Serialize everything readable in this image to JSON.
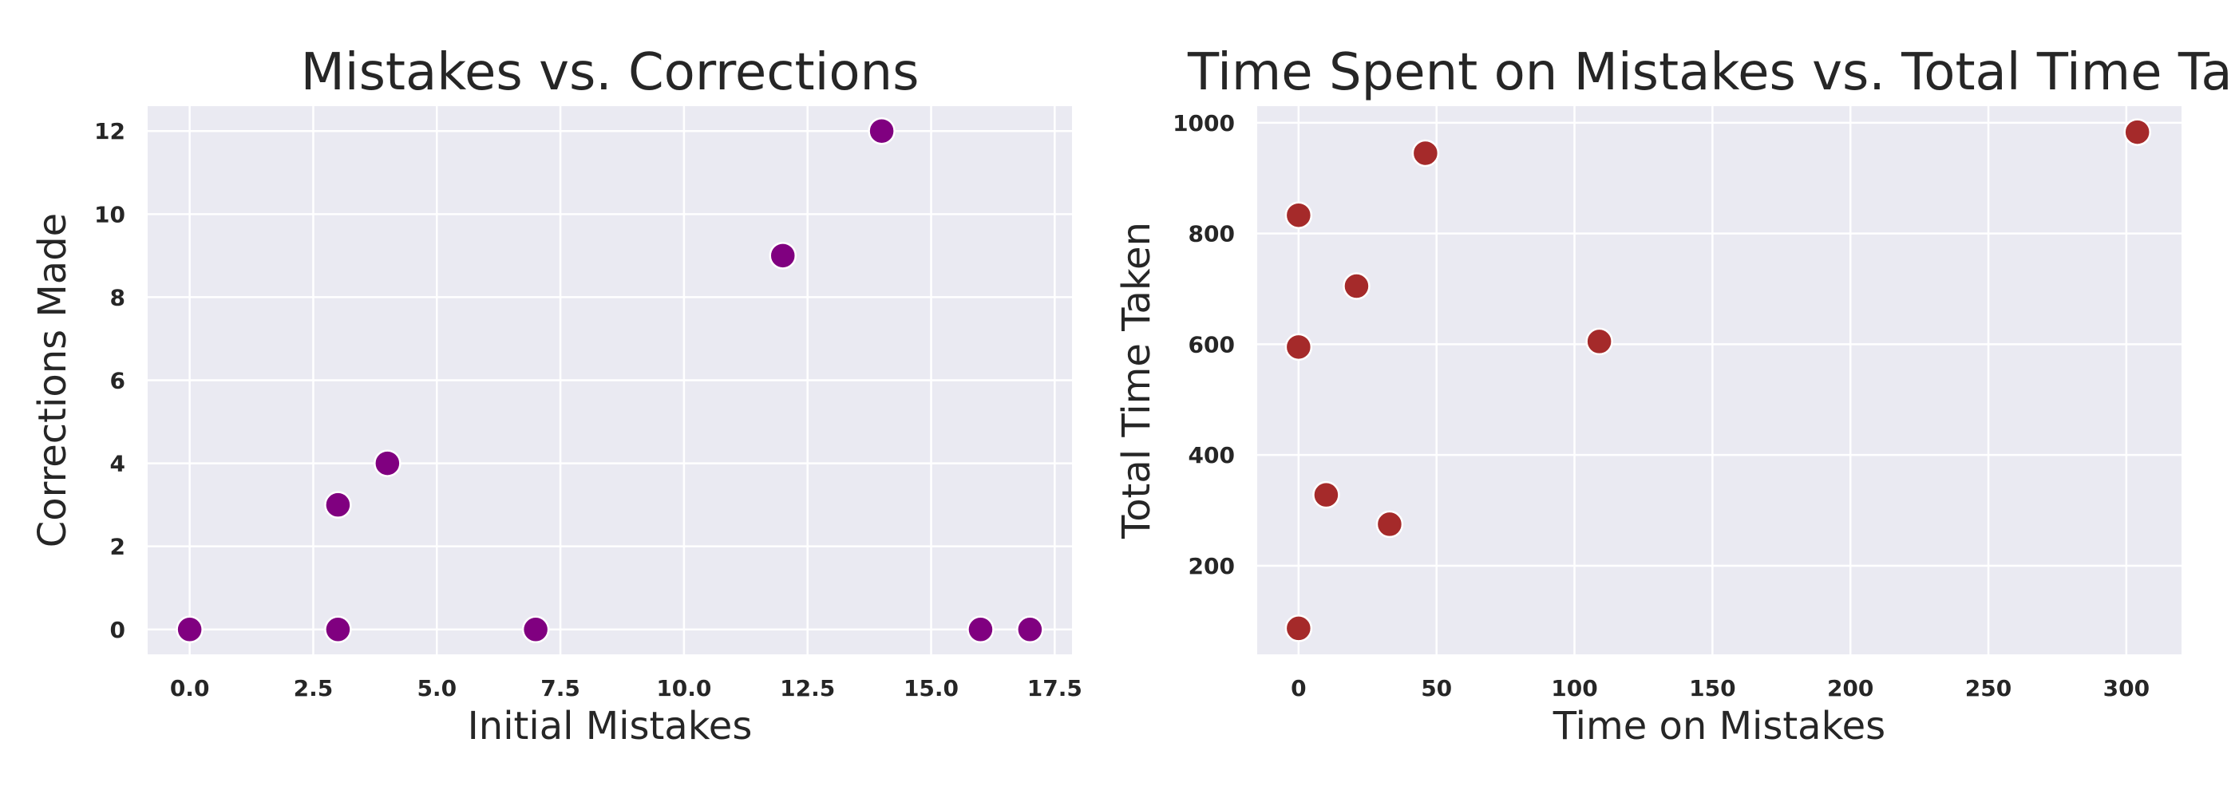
{
  "chart_data": [
    {
      "type": "scatter",
      "title": "Mistakes vs. Corrections",
      "xlabel": "Initial Mistakes",
      "ylabel": "Corrections Made",
      "xlim": [
        -0.85,
        17.85
      ],
      "ylim": [
        -0.6,
        12.6
      ],
      "xticks": [
        0.0,
        2.5,
        5.0,
        7.5,
        10.0,
        12.5,
        15.0,
        17.5
      ],
      "xtick_labels": [
        "0.0",
        "2.5",
        "5.0",
        "7.5",
        "10.0",
        "12.5",
        "15.0",
        "17.5"
      ],
      "yticks": [
        0,
        2,
        4,
        6,
        8,
        10,
        12
      ],
      "ytick_labels": [
        "0",
        "2",
        "4",
        "6",
        "8",
        "10",
        "12"
      ],
      "grid": true,
      "color": "#800080",
      "points": [
        {
          "x": 0,
          "y": 0
        },
        {
          "x": 3,
          "y": 0
        },
        {
          "x": 3,
          "y": 3
        },
        {
          "x": 4,
          "y": 4
        },
        {
          "x": 7,
          "y": 0
        },
        {
          "x": 12,
          "y": 9
        },
        {
          "x": 14,
          "y": 12
        },
        {
          "x": 16,
          "y": 0
        },
        {
          "x": 17,
          "y": 0
        }
      ]
    },
    {
      "type": "scatter",
      "title": "Time Spent on Mistakes vs. Total Time Taken",
      "xlabel": "Time on Mistakes",
      "ylabel": "Total Time Taken",
      "xlim": [
        -15,
        320
      ],
      "ylim": [
        40,
        1030
      ],
      "xticks": [
        0,
        50,
        100,
        150,
        200,
        250,
        300
      ],
      "xtick_labels": [
        "0",
        "50",
        "100",
        "150",
        "200",
        "250",
        "300"
      ],
      "yticks": [
        200,
        400,
        600,
        800,
        1000
      ],
      "ytick_labels": [
        "200",
        "400",
        "600",
        "800",
        "1000"
      ],
      "grid": true,
      "color": "#a52a2a",
      "points": [
        {
          "x": 0,
          "y": 87
        },
        {
          "x": 0,
          "y": 595
        },
        {
          "x": 0,
          "y": 833
        },
        {
          "x": 10,
          "y": 328
        },
        {
          "x": 21,
          "y": 705
        },
        {
          "x": 33,
          "y": 275
        },
        {
          "x": 46,
          "y": 945
        },
        {
          "x": 109,
          "y": 605
        },
        {
          "x": 304,
          "y": 983
        }
      ]
    }
  ]
}
